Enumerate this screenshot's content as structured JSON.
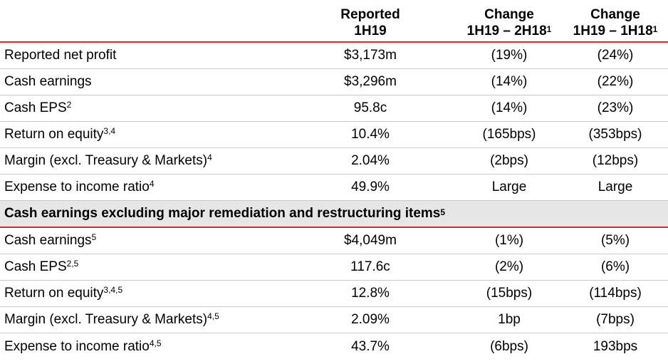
{
  "header": {
    "col1_line1": "Reported",
    "col1_line2": "1H19",
    "col2_line1": "Change",
    "col2_line2": "1H19 – 2H18",
    "col2_sup": "1",
    "col3_line1": "Change",
    "col3_line2": "1H19 – 1H18",
    "col3_sup": "1"
  },
  "rows_top": [
    {
      "label": "Reported net profit",
      "sup": "",
      "reported": "$3,173m",
      "change_2h18": "(19%)",
      "change_1h18": "(24%)"
    },
    {
      "label": "Cash earnings",
      "sup": "",
      "reported": "$3,296m",
      "change_2h18": "(14%)",
      "change_1h18": "(22%)"
    },
    {
      "label": "Cash EPS",
      "sup": "2",
      "reported": "95.8c",
      "change_2h18": "(14%)",
      "change_1h18": "(23%)"
    },
    {
      "label": "Return on equity",
      "sup": "3,4",
      "reported": "10.4%",
      "change_2h18": "(165bps)",
      "change_1h18": "(353bps)"
    },
    {
      "label": "Margin (excl. Treasury & Markets)",
      "sup": "4",
      "reported": "2.04%",
      "change_2h18": "(2bps)",
      "change_1h18": "(12bps)"
    },
    {
      "label": "Expense to income ratio",
      "sup": "4",
      "reported": "49.9%",
      "change_2h18": "Large",
      "change_1h18": "Large"
    }
  ],
  "section": {
    "title": "Cash earnings excluding major remediation and restructuring items",
    "sup": "5"
  },
  "rows_bottom": [
    {
      "label": "Cash earnings",
      "sup": "5",
      "reported": "$4,049m",
      "change_2h18": "(1%)",
      "change_1h18": "(5%)"
    },
    {
      "label": "Cash EPS",
      "sup": "2,5",
      "reported": "117.6c",
      "change_2h18": "(2%)",
      "change_1h18": "(6%)"
    },
    {
      "label": "Return on equity",
      "sup": "3,4,5",
      "reported": "12.8%",
      "change_2h18": "(15bps)",
      "change_1h18": "(114bps)"
    },
    {
      "label": "Margin (excl. Treasury & Markets)",
      "sup": "4,5",
      "reported": "2.09%",
      "change_2h18": "1bp",
      "change_1h18": "(7bps)"
    },
    {
      "label": "Expense to income ratio",
      "sup": "4,5",
      "reported": "43.7%",
      "change_2h18": "(6bps)",
      "change_1h18": "193bps"
    }
  ],
  "colors": {
    "accent_line": "#d9262e",
    "section_bg": "#e6e6e6",
    "row_divider": "#c8c8c8"
  }
}
